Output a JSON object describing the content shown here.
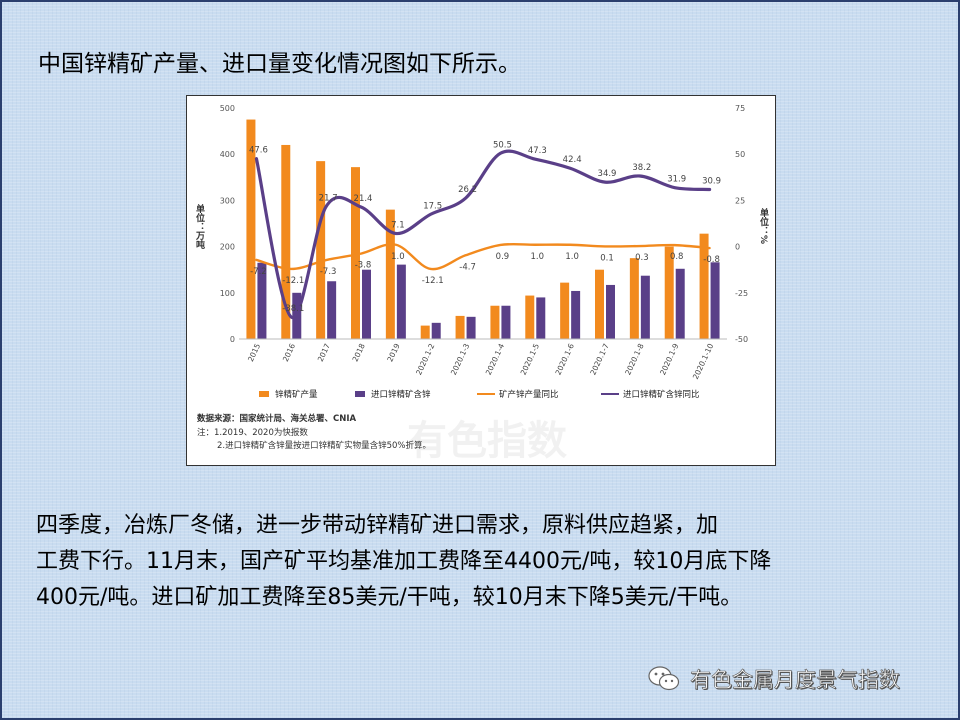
{
  "heading": "中国锌精矿产量、进口量变化情况图如下所示。",
  "chart_data": {
    "type": "bar",
    "categories": [
      "2015",
      "2016",
      "2017",
      "2018",
      "2019",
      "2020.1-2",
      "2020.1-3",
      "2020.1-4",
      "2020.1-5",
      "2020.1-6",
      "2020.1-7",
      "2020.1-8",
      "2020.1-9",
      "2020.1-10"
    ],
    "ylabel": "单位：万吨",
    "y2label": "单位：%",
    "ylim": [
      0,
      500
    ],
    "yticks": [
      0,
      100,
      200,
      300,
      400,
      500
    ],
    "y2lim": [
      -50,
      75
    ],
    "y2ticks": [
      -50,
      -25,
      0,
      25,
      50,
      75
    ],
    "series": [
      {
        "name": "锌精矿产量",
        "kind": "bar",
        "color": "#f28a1e",
        "values": [
          475,
          420,
          385,
          372,
          280,
          29,
          50,
          72,
          94,
          122,
          150,
          175,
          200,
          228
        ]
      },
      {
        "name": "进口锌精矿含锌",
        "kind": "bar",
        "color": "#5a3f88",
        "values": [
          165,
          100,
          125,
          150,
          161,
          35,
          48,
          72,
          90,
          104,
          117,
          137,
          152,
          166
        ]
      },
      {
        "name": "矿产锌产量同比",
        "kind": "line",
        "axis": "right",
        "color": "#f28a1e",
        "values": [
          -7.2,
          -12.1,
          -7.3,
          -3.8,
          1.0,
          -12.1,
          -4.7,
          0.9,
          1.0,
          1.0,
          0.1,
          0.3,
          0.8,
          -0.8
        ],
        "labels": [
          "-7.2",
          "-12.1",
          "-7.3",
          "-3.8",
          "1.0",
          "-12.1",
          "-4.7",
          "0.9",
          "1.0",
          "1.0",
          "0.1",
          "0.3",
          "0.8",
          "-0.8"
        ]
      },
      {
        "name": "进口锌精矿含锌同比",
        "kind": "line",
        "axis": "right",
        "color": "#5a3f88",
        "values": [
          47.6,
          -38.1,
          21.7,
          21.4,
          7.1,
          17.5,
          26.2,
          50.5,
          47.3,
          42.4,
          34.9,
          38.2,
          31.9,
          30.9
        ],
        "labels": [
          "47.6",
          "-38.1",
          "21.7",
          "21.4",
          "7.1",
          "17.5",
          "26.2",
          "50.5",
          "47.3",
          "42.4",
          "34.9",
          "38.2",
          "31.9",
          "30.9"
        ]
      }
    ],
    "legend_position": "bottom",
    "notes": [
      "数据来源：国家统计局、海关总署、CNIA",
      "注：1.2019、2020为快报数",
      "2.进口锌精矿含锌量按进口锌精矿实物量含锌50%折算。"
    ],
    "watermark": "有色指数"
  },
  "paragraph": {
    "line1": "四季度，冶炼厂冬储，进一步带动锌精矿进口需求，原料供应趋紧，加",
    "line2": "工费下行。11月末，国产矿平均基准加工费降至4400元/吨，较10月底下降",
    "line3": "400元/吨。进口矿加工费降至85美元/干吨，较10月末下降5美元/干吨。"
  },
  "wechat": {
    "account_name": "有色金属月度景气指数"
  }
}
